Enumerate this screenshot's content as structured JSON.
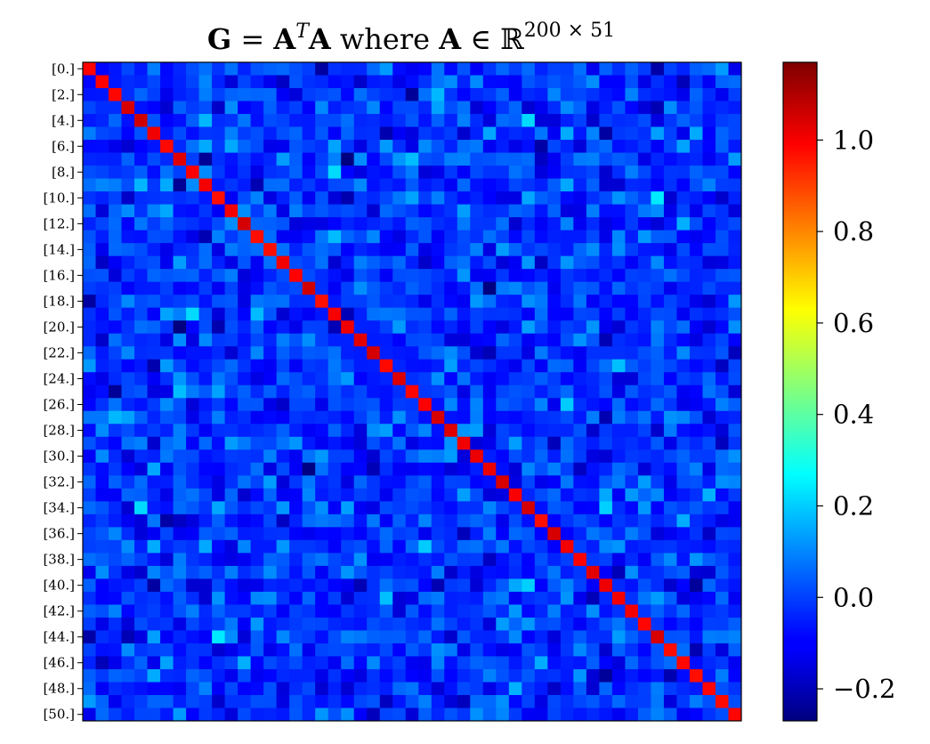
{
  "chart_data": {
    "type": "heatmap",
    "title": {
      "lhs": "G",
      "eq": " = ",
      "a": "A",
      "t_sup": "T",
      "a2": "A",
      "where": " where ",
      "a3": "A",
      "in": " ∈ ",
      "reals": "ℝ",
      "dims": "200 × 51"
    },
    "rows": 51,
    "cols": 51,
    "colormap": "jet",
    "clim": [
      -0.27,
      1.17
    ],
    "diagonal_value": 1.0,
    "off_diagonal_mean": -0.02,
    "off_diagonal_spread": 0.075,
    "y_tick_labels": [
      "[0.]",
      "[2.]",
      "[4.]",
      "[6.]",
      "[8.]",
      "[10.]",
      "[12.]",
      "[14.]",
      "[16.]",
      "[18.]",
      "[20.]",
      "[22.]",
      "[24.]",
      "[26.]",
      "[28.]",
      "[30.]",
      "[32.]",
      "[34.]",
      "[36.]",
      "[38.]",
      "[40.]",
      "[42.]",
      "[44.]",
      "[46.]",
      "[48.]",
      "[50.]"
    ],
    "y_tick_rows": [
      0,
      2,
      4,
      6,
      8,
      10,
      12,
      14,
      16,
      18,
      20,
      22,
      24,
      26,
      28,
      30,
      32,
      34,
      36,
      38,
      40,
      42,
      44,
      46,
      48,
      50
    ],
    "x_tick_labels": [],
    "colorbar": {
      "ticks": [
        -0.2,
        0.0,
        0.2,
        0.4,
        0.6,
        0.8,
        1.0
      ],
      "tick_labels": [
        "−0.2",
        "0.0",
        "0.2",
        "0.4",
        "0.6",
        "0.8",
        "1.0"
      ]
    },
    "grid": false
  }
}
